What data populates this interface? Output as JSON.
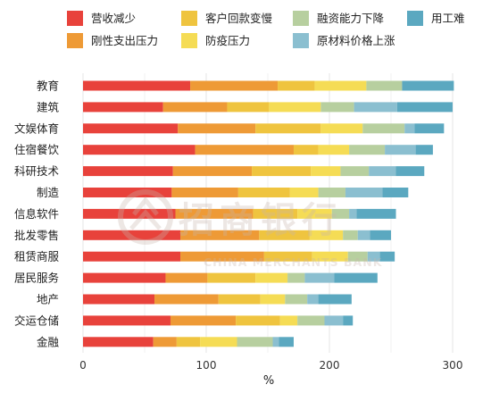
{
  "chart_data": {
    "type": "bar",
    "orientation": "horizontal",
    "stacked": true,
    "categories": [
      "教育",
      "建筑",
      "文娱体育",
      "住宿餐饮",
      "科研技术",
      "制造",
      "信息软件",
      "批发零售",
      "租赁商服",
      "居民服务",
      "地产",
      "交运仓储",
      "金融"
    ],
    "series": [
      {
        "name": "营收减少",
        "color": "#e8423b",
        "values": [
          87,
          65,
          77,
          91,
          73,
          72,
          75,
          79,
          79,
          67,
          58,
          71,
          57
        ]
      },
      {
        "name": "刚性支出压力",
        "color": "#ee9a36",
        "values": [
          71,
          52,
          63,
          80,
          64,
          54,
          63,
          64,
          68,
          34,
          52,
          53,
          19
        ]
      },
      {
        "name": "客户回款变慢",
        "color": "#efc43f",
        "values": [
          30,
          34,
          53,
          20,
          48,
          42,
          36,
          41,
          39,
          39,
          34,
          36,
          19
        ]
      },
      {
        "name": "防疫压力",
        "color": "#f5dc55",
        "values": [
          42,
          42,
          34,
          25,
          24,
          23,
          28,
          27,
          29,
          26,
          20,
          14,
          30
        ]
      },
      {
        "name": "融资能力下降",
        "color": "#b7cf9f",
        "values": [
          29,
          27,
          34,
          29,
          23,
          22,
          14,
          12,
          16,
          14,
          18,
          22,
          29
        ]
      },
      {
        "name": "原材料价格上涨",
        "color": "#8bbfd0",
        "values": [
          0,
          35,
          8,
          25,
          22,
          30,
          6,
          10,
          10,
          24,
          9,
          15,
          5
        ]
      },
      {
        "name": "用工难",
        "color": "#5ba8c0",
        "values": [
          42,
          45,
          24,
          14,
          23,
          21,
          32,
          17,
          12,
          35,
          27,
          8,
          12
        ]
      }
    ],
    "xlabel": "%",
    "xlim": [
      0,
      310
    ],
    "xticks": [
      0,
      100,
      200,
      300
    ],
    "grid": true,
    "legend_position": "top",
    "watermark": {
      "text_cn": "招商银行",
      "text_en": "CHINA MERCHANTS BANK"
    }
  }
}
